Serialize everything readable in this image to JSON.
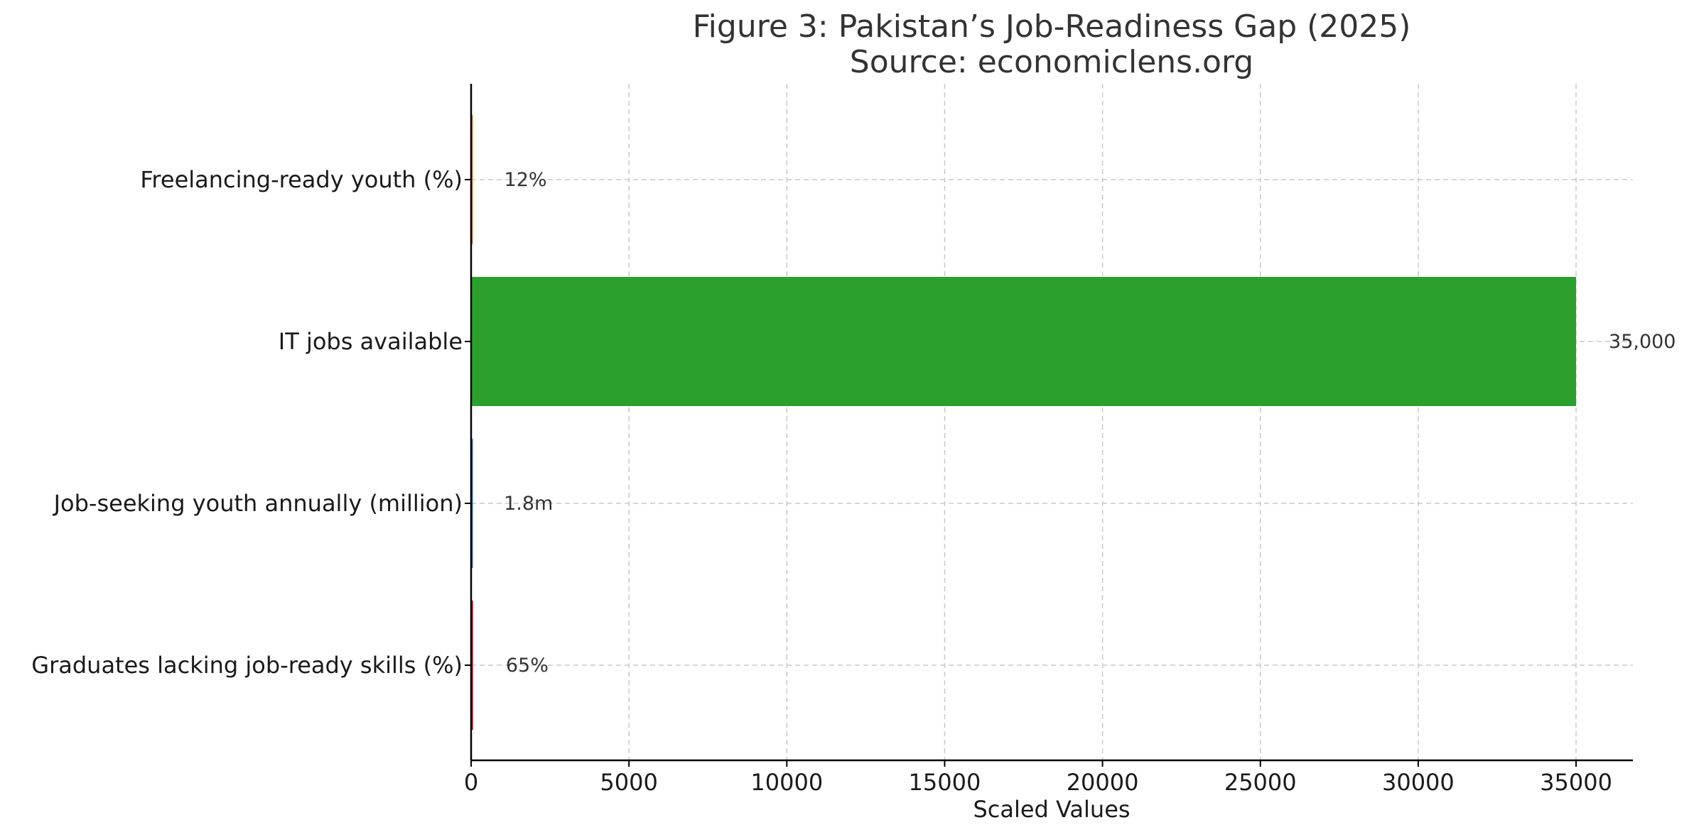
{
  "chart_data": {
    "type": "bar",
    "orientation": "horizontal",
    "title": "Figure 3: Pakistan’s Job-Readiness Gap (2025)",
    "subtitle": "Source: economiclens.org",
    "xlabel": "Scaled Values",
    "ylabel": "",
    "xlim": [
      0,
      36800
    ],
    "xticks": [
      0,
      5000,
      10000,
      15000,
      20000,
      25000,
      30000,
      35000
    ],
    "xtick_labels": [
      "0",
      "5000",
      "10000",
      "15000",
      "20000",
      "25000",
      "30000",
      "35000"
    ],
    "grid": true,
    "categories": [
      "Graduates lacking job-ready skills (%)",
      "Job-seeking youth annually (million)",
      "IT jobs available",
      "Freelancing-ready youth (%)"
    ],
    "values": [
      65,
      1.8,
      35000,
      12
    ],
    "data_labels": [
      "65%",
      "1.8m",
      "35,000",
      "12%"
    ],
    "colors": [
      "#d62728",
      "#1f77b4",
      "#2ca02c",
      "#ff7f0e"
    ]
  }
}
